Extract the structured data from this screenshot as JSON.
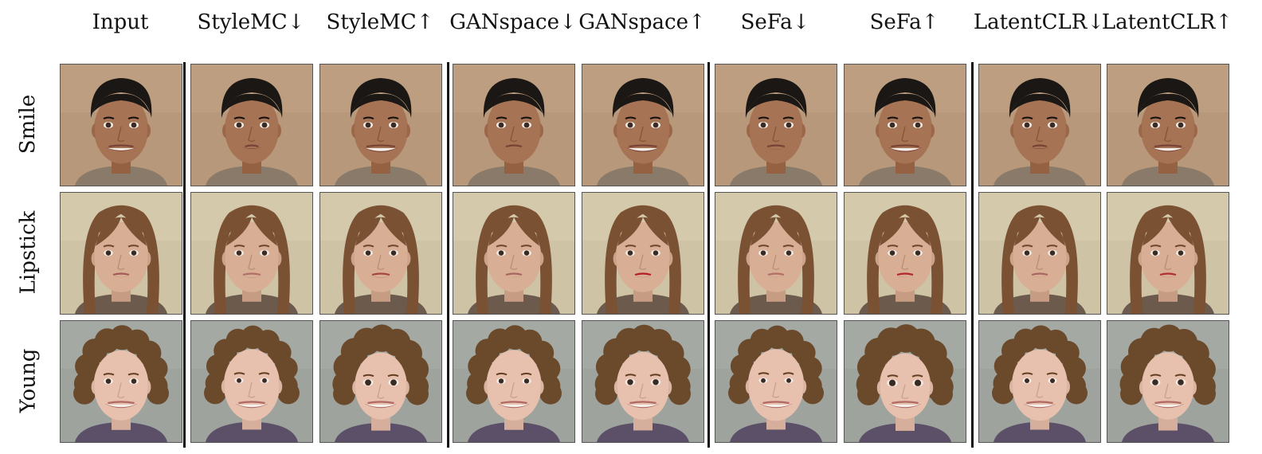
{
  "columns": [
    {
      "label": "Input",
      "group": "input"
    },
    {
      "label": "StyleMC↓",
      "group": "stylemc"
    },
    {
      "label": "StyleMC↑",
      "group": "stylemc"
    },
    {
      "label": "GANspace↓",
      "group": "ganspace"
    },
    {
      "label": "GANspace↑",
      "group": "ganspace"
    },
    {
      "label": "SeFa↓",
      "group": "sefa"
    },
    {
      "label": "SeFa↑",
      "group": "sefa"
    },
    {
      "label": "LatentCLR↓",
      "group": "latentclr"
    },
    {
      "label": "LatentCLR↑",
      "group": "latentclr"
    }
  ],
  "rows": [
    {
      "label": "Smile",
      "subject": {
        "skin": "#a67454",
        "hair": "#1b1714",
        "bg": "#b7987a",
        "shirt": "#8a7a6a",
        "hair_style": "short"
      },
      "cells": [
        {
          "smile": 0.75,
          "lip": "#7a4236",
          "young": 0.5
        },
        {
          "smile": 0.05,
          "lip": "#7a4236",
          "young": 0.5
        },
        {
          "smile": 1.0,
          "lip": "#7a4236",
          "young": 0.5
        },
        {
          "smile": 0.2,
          "lip": "#7a4236",
          "young": 0.5
        },
        {
          "smile": 0.95,
          "lip": "#7a4236",
          "young": 0.5
        },
        {
          "smile": 0.3,
          "lip": "#7a4236",
          "young": 0.5
        },
        {
          "smile": 0.95,
          "lip": "#7a4236",
          "young": 0.5
        },
        {
          "smile": 0.1,
          "lip": "#7a4236",
          "young": 0.5
        },
        {
          "smile": 0.9,
          "lip": "#7a4236",
          "young": 0.5
        }
      ]
    },
    {
      "label": "Lipstick",
      "subject": {
        "skin": "#d8ae95",
        "hair": "#7a5132",
        "bg": "#cfc3a6",
        "shirt": "#6c5a4c",
        "hair_style": "long"
      },
      "cells": [
        {
          "smile": 0.2,
          "lip": "#a55a58",
          "young": 0.4
        },
        {
          "smile": 0.3,
          "lip": "#b07068",
          "young": 0.4
        },
        {
          "smile": 0.3,
          "lip": "#a64540",
          "young": 0.4
        },
        {
          "smile": 0.2,
          "lip": "#a86662",
          "young": 0.4
        },
        {
          "smile": 0.2,
          "lip": "#b51f24",
          "young": 0.4
        },
        {
          "smile": 0.2,
          "lip": "#b07068",
          "young": 0.4
        },
        {
          "smile": 0.2,
          "lip": "#b3262a",
          "young": 0.4
        },
        {
          "smile": 0.2,
          "lip": "#a86662",
          "young": 0.4
        },
        {
          "smile": 0.2,
          "lip": "#b0302f",
          "young": 0.4
        }
      ]
    },
    {
      "label": "Young",
      "subject": {
        "skin": "#e8c1ae",
        "hair": "#6b4a2c",
        "bg": "#9ea39e",
        "shirt": "#5c5068",
        "hair_style": "curly"
      },
      "cells": [
        {
          "smile": 0.85,
          "lip": "#b06864",
          "young": 0.4
        },
        {
          "smile": 0.85,
          "lip": "#b06864",
          "young": 0.2
        },
        {
          "smile": 0.85,
          "lip": "#b06864",
          "young": 0.8
        },
        {
          "smile": 0.85,
          "lip": "#b06864",
          "young": 0.35
        },
        {
          "smile": 0.85,
          "lip": "#b06864",
          "young": 0.7
        },
        {
          "smile": 0.85,
          "lip": "#b06864",
          "young": 0.2
        },
        {
          "smile": 0.85,
          "lip": "#b06864",
          "young": 0.95
        },
        {
          "smile": 0.85,
          "lip": "#b06864",
          "young": 0.25
        },
        {
          "smile": 0.85,
          "lip": "#b06864",
          "young": 0.75
        }
      ]
    }
  ]
}
